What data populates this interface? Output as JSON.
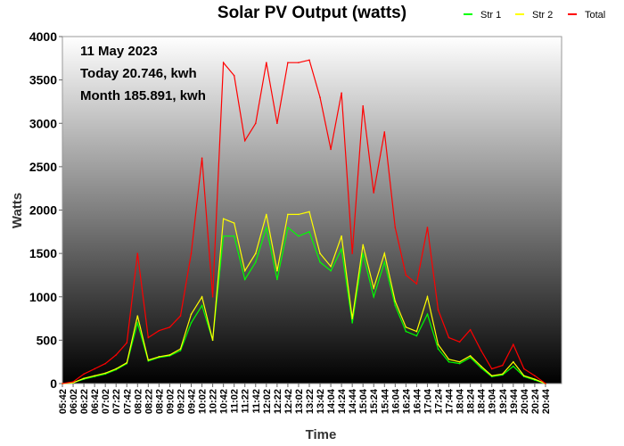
{
  "chart_data": {
    "type": "line",
    "title": "Solar PV Output (watts)",
    "xlabel": "Time",
    "ylabel": "Watts",
    "ylim": [
      0,
      4000
    ],
    "yticks": [
      0,
      500,
      1000,
      1500,
      2000,
      2500,
      3000,
      3500,
      4000
    ],
    "legend_position": "top-right",
    "annotations": [
      "11 May 2023",
      "Today 20.746, kwh",
      "Month 185.891, kwh"
    ],
    "x": [
      "05:42",
      "06:02",
      "06:22",
      "06:42",
      "07:02",
      "07:22",
      "07:42",
      "08:02",
      "08:22",
      "08:42",
      "09:02",
      "09:22",
      "09:42",
      "10:02",
      "10:22",
      "10:42",
      "11:02",
      "11:22",
      "11:42",
      "12:02",
      "12:22",
      "12:42",
      "13:02",
      "13:22",
      "13:42",
      "14:04",
      "14:24",
      "14:44",
      "15:04",
      "15:24",
      "15:44",
      "16:04",
      "16:24",
      "16:44",
      "17:04",
      "17:24",
      "17:44",
      "18:04",
      "18:24",
      "18:44",
      "19:04",
      "19:24",
      "19:44",
      "20:04",
      "20:24",
      "20:44"
    ],
    "series": [
      {
        "name": "Str 1",
        "color": "#00ff00",
        "values": [
          0,
          10,
          50,
          80,
          110,
          160,
          230,
          700,
          260,
          300,
          320,
          380,
          700,
          900,
          500,
          1700,
          1700,
          1200,
          1400,
          1800,
          1200,
          1800,
          1700,
          1750,
          1400,
          1300,
          1550,
          700,
          1500,
          1000,
          1400,
          900,
          600,
          550,
          800,
          400,
          250,
          230,
          300,
          180,
          80,
          100,
          200,
          80,
          40,
          0
        ]
      },
      {
        "name": "Str 2",
        "color": "#ffff00",
        "values": [
          0,
          10,
          60,
          90,
          120,
          170,
          240,
          780,
          270,
          310,
          330,
          400,
          800,
          1000,
          500,
          1900,
          1850,
          1300,
          1500,
          1950,
          1300,
          1950,
          1950,
          1980,
          1500,
          1350,
          1700,
          750,
          1600,
          1100,
          1500,
          950,
          650,
          600,
          1000,
          450,
          280,
          250,
          320,
          200,
          90,
          110,
          250,
          90,
          50,
          0
        ]
      },
      {
        "name": "Total",
        "color": "#ff0000",
        "values": [
          0,
          20,
          110,
          170,
          230,
          330,
          470,
          1500,
          530,
          610,
          650,
          780,
          1500,
          2600,
          1000,
          3700,
          3550,
          2800,
          3000,
          3700,
          3000,
          3700,
          3700,
          3730,
          3300,
          2700,
          3350,
          1500,
          3200,
          2200,
          2900,
          1800,
          1250,
          1150,
          1800,
          850,
          530,
          480,
          620,
          380,
          170,
          210,
          450,
          170,
          90,
          0
        ]
      }
    ]
  }
}
